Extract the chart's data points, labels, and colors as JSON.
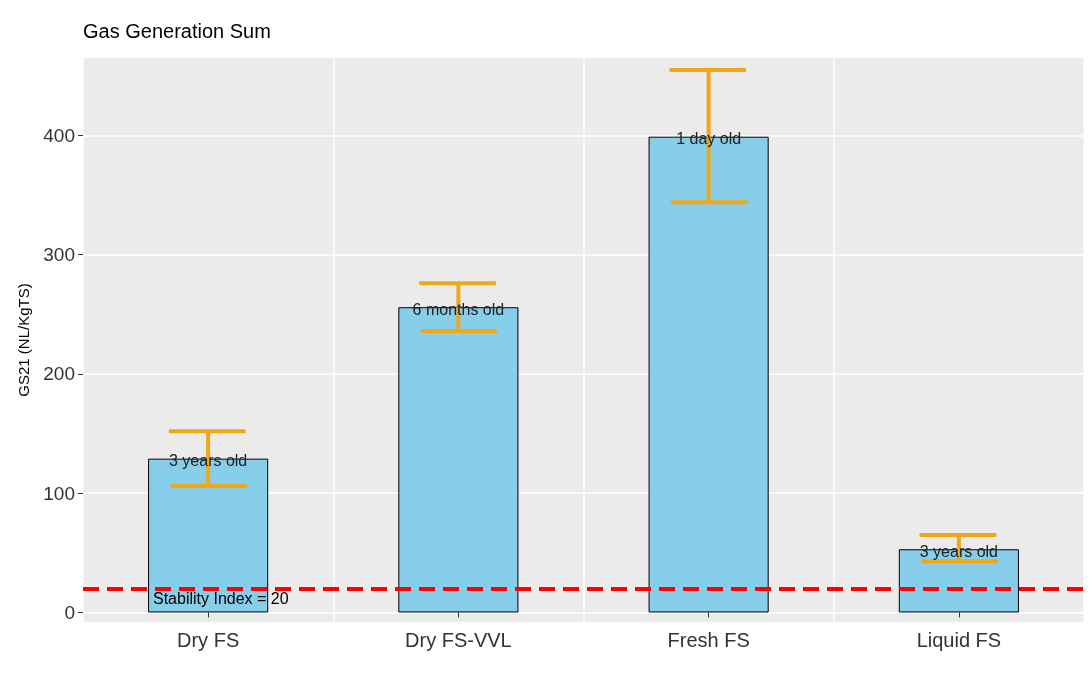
{
  "chart_data": {
    "type": "bar",
    "title": "Gas Generation Sum",
    "ylabel": "GS21 (NL/KgTS)",
    "categories": [
      "Dry FS",
      "Dry FS-VVL",
      "Fresh FS",
      "Liquid FS"
    ],
    "values": [
      129,
      256,
      399,
      53
    ],
    "color": "#87ceeb",
    "errors": [
      [
        106,
        152
      ],
      [
        236,
        276
      ],
      [
        344,
        455
      ],
      [
        43,
        65
      ]
    ],
    "ylim": [
      -8,
      465
    ],
    "yticks": [
      0,
      100,
      200,
      300,
      400
    ],
    "grid": true,
    "ref_lines": [
      {
        "axis": "y",
        "value": 20,
        "label": "Stability Index = 20",
        "color": "#ff0000",
        "line_style": "dashed"
      }
    ],
    "annotations": [
      {
        "text": "3 years old",
        "x": "Dry FS",
        "y": 129
      },
      {
        "text": "6 months old",
        "x": "Dry FS-VVL",
        "y": 256
      },
      {
        "text": "1 day old",
        "x": "Fresh FS",
        "y": 399
      },
      {
        "text": "3 years old",
        "x": "Liquid FS",
        "y": 53
      }
    ]
  }
}
